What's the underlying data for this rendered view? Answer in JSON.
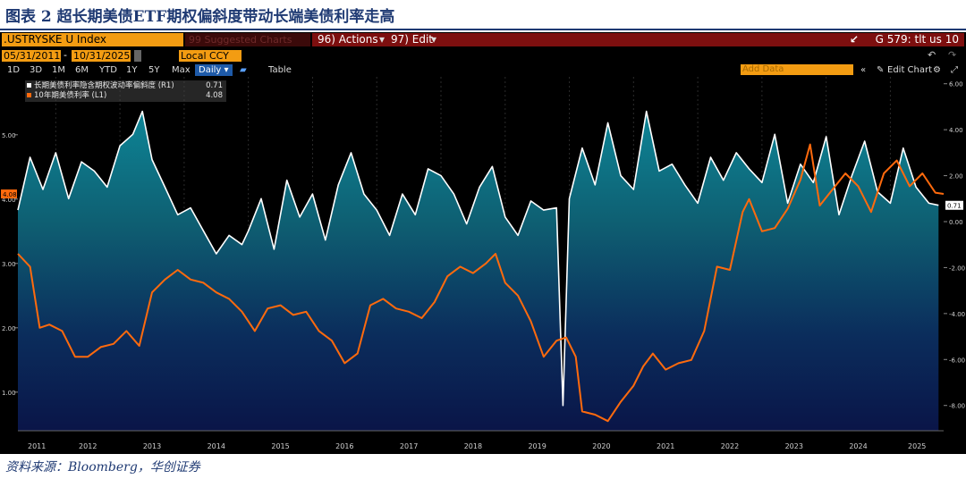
{
  "caption": "图表 2 超长期美债ETF期权偏斜度带动长端美债利率走高",
  "source": "资料来源：Bloomberg，华创证券",
  "toolbar": {
    "ticker": ".USTRYSKE U Index",
    "suggested": "99 Suggested Charts",
    "actions": "96) Actions",
    "edit": "97) Edit",
    "graph_title": "G 579: tlt us 10",
    "start_date": "05/31/2011",
    "end_date": "10/31/2025",
    "currency": "Local CCY",
    "ranges": [
      "1D",
      "3D",
      "1M",
      "6M",
      "YTD",
      "1Y",
      "5Y",
      "Max"
    ],
    "frequency": "Daily",
    "table_label": "Table",
    "add_data": "Add Data",
    "edit_chart": "Edit Chart"
  },
  "colors": {
    "white_series": "#ffffff",
    "orange_series": "#ff6a0d",
    "fill_top": "#0e6d7a",
    "fill_bottom": "#0a1a55"
  },
  "chart_data": {
    "type": "line",
    "title": "",
    "x_tick_labels": [
      "2011",
      "2012",
      "2013",
      "2014",
      "2015",
      "2016",
      "2017",
      "2018",
      "2019",
      "2020",
      "2021",
      "2022",
      "2023",
      "2024",
      "2025"
    ],
    "xlim": [
      2011.41,
      2025.83
    ],
    "left_axis": {
      "label": "L1",
      "ticks": [
        "1.00",
        "2.00",
        "3.00",
        "4.00",
        "5.00"
      ],
      "ylim": [
        0.4,
        5.9
      ]
    },
    "right_axis": {
      "label": "R1",
      "ticks": [
        "-8.00",
        "-6.00",
        "-4.00",
        "-2.00",
        "0.00",
        "2.00",
        "4.00",
        "6.00"
      ],
      "ylim": [
        -9.1,
        6.3
      ]
    },
    "series": [
      {
        "name": "长期美债利率隐含期权波动率偏斜度 (R1)",
        "last_value": "0.71",
        "axis": "right",
        "x": [
          2011.41,
          2011.6,
          2011.8,
          2012.0,
          2012.2,
          2012.4,
          2012.6,
          2012.8,
          2013.0,
          2013.2,
          2013.35,
          2013.5,
          2013.7,
          2013.9,
          2014.1,
          2014.3,
          2014.5,
          2014.7,
          2014.9,
          2015.0,
          2015.2,
          2015.4,
          2015.6,
          2015.8,
          2016.0,
          2016.2,
          2016.4,
          2016.6,
          2016.8,
          2017.0,
          2017.2,
          2017.4,
          2017.6,
          2017.8,
          2018.0,
          2018.2,
          2018.4,
          2018.6,
          2018.8,
          2019.0,
          2019.2,
          2019.4,
          2019.6,
          2019.8,
          2019.9,
          2020.0,
          2020.2,
          2020.4,
          2020.6,
          2020.8,
          2021.0,
          2021.2,
          2021.4,
          2021.6,
          2021.8,
          2022.0,
          2022.2,
          2022.4,
          2022.6,
          2022.8,
          2023.0,
          2023.2,
          2023.4,
          2023.6,
          2023.8,
          2024.0,
          2024.2,
          2024.4,
          2024.6,
          2024.8,
          2025.0,
          2025.2,
          2025.4,
          2025.6,
          2025.75
        ],
        "y": [
          0.5,
          2.8,
          1.4,
          3.0,
          1.0,
          2.6,
          2.2,
          1.5,
          3.3,
          3.8,
          4.8,
          2.7,
          1.5,
          0.3,
          0.6,
          -0.4,
          -1.4,
          -0.6,
          -1.0,
          -0.4,
          1.0,
          -1.2,
          1.8,
          0.2,
          1.2,
          -0.8,
          1.6,
          3.0,
          1.2,
          0.5,
          -0.6,
          1.2,
          0.3,
          2.3,
          2.0,
          1.2,
          -0.1,
          1.5,
          2.4,
          0.2,
          -0.6,
          0.9,
          0.5,
          0.6,
          -8.0,
          1.0,
          3.2,
          1.6,
          4.3,
          2.0,
          1.4,
          4.8,
          2.2,
          2.5,
          1.6,
          0.8,
          2.8,
          1.8,
          3.0,
          2.3,
          1.7,
          3.8,
          0.8,
          2.5,
          1.7,
          3.7,
          0.3,
          2.0,
          3.5,
          1.3,
          0.8,
          3.2,
          1.5,
          0.8,
          0.71
        ]
      },
      {
        "name": "10年期美债利率 (L1)",
        "last_value": "4.08",
        "axis": "left",
        "x": [
          2011.41,
          2011.6,
          2011.75,
          2011.9,
          2012.1,
          2012.3,
          2012.5,
          2012.7,
          2012.9,
          2013.1,
          2013.3,
          2013.5,
          2013.7,
          2013.9,
          2014.1,
          2014.3,
          2014.5,
          2014.7,
          2014.9,
          2015.1,
          2015.3,
          2015.5,
          2015.7,
          2015.9,
          2016.1,
          2016.3,
          2016.5,
          2016.7,
          2016.9,
          2017.1,
          2017.3,
          2017.5,
          2017.7,
          2017.9,
          2018.1,
          2018.3,
          2018.5,
          2018.7,
          2018.85,
          2019.0,
          2019.2,
          2019.4,
          2019.6,
          2019.8,
          2019.95,
          2020.1,
          2020.2,
          2020.4,
          2020.6,
          2020.8,
          2021.0,
          2021.15,
          2021.3,
          2021.5,
          2021.7,
          2021.9,
          2022.1,
          2022.3,
          2022.5,
          2022.7,
          2022.8,
          2023.0,
          2023.2,
          2023.4,
          2023.6,
          2023.75,
          2023.9,
          2024.1,
          2024.3,
          2024.5,
          2024.7,
          2024.9,
          2025.1,
          2025.3,
          2025.5,
          2025.7,
          2025.83
        ],
        "y": [
          3.15,
          2.95,
          2.0,
          2.05,
          1.95,
          1.55,
          1.55,
          1.7,
          1.75,
          1.95,
          1.72,
          2.55,
          2.75,
          2.9,
          2.75,
          2.7,
          2.55,
          2.45,
          2.25,
          1.95,
          2.3,
          2.35,
          2.2,
          2.25,
          1.95,
          1.8,
          1.45,
          1.6,
          2.35,
          2.45,
          2.3,
          2.25,
          2.15,
          2.4,
          2.8,
          2.95,
          2.85,
          3.0,
          3.15,
          2.7,
          2.5,
          2.1,
          1.55,
          1.8,
          1.85,
          1.55,
          0.7,
          0.65,
          0.55,
          0.85,
          1.1,
          1.4,
          1.6,
          1.35,
          1.45,
          1.5,
          1.95,
          2.95,
          2.9,
          3.8,
          4.0,
          3.5,
          3.55,
          3.85,
          4.3,
          4.85,
          3.9,
          4.15,
          4.4,
          4.2,
          3.8,
          4.4,
          4.6,
          4.2,
          4.4,
          4.1,
          4.08
        ]
      }
    ]
  }
}
